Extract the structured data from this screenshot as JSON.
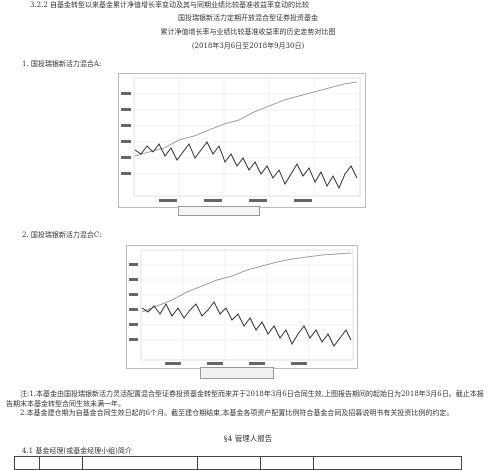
{
  "section_title": "3.2.2 自基金转型以来基金累计净值增长率变动及其与同期业绩比较基准收益率变动的比较",
  "fund_name": "国投瑞银新活力定期开放混合型证券投资基金",
  "chart_caption": "累计净值增长率与业绩比较基准收益率的历史走势对比图",
  "period": "(2018年3月6日至2018年9月30日)",
  "items": [
    {
      "label": "1.  国投瑞银新活力混合A:"
    },
    {
      "label": "2.  国投瑞银新活力混合C:"
    }
  ],
  "notes": [
    "注:1.本基金由国投瑞银新活力灵活配置混合型证券投资基金转型而来并于2018年3月6日合同生效,上图报告期间的起始日为2018年3月6日。截止本报告期末本基金转型合同生效未满一年。",
    "2.本基金建仓期为自基金合同生效日起的6个月。截至建仓期结束,本基金各项资产配置比例符合基金合同及招募说明书有关投资比例的约定。"
  ],
  "section4_title": "§4  管理人报告",
  "section41_title": "4.1 基金经理(或基金经理小组)简介",
  "colors": {
    "line_dark": "#222222",
    "line_light": "#888888"
  }
}
